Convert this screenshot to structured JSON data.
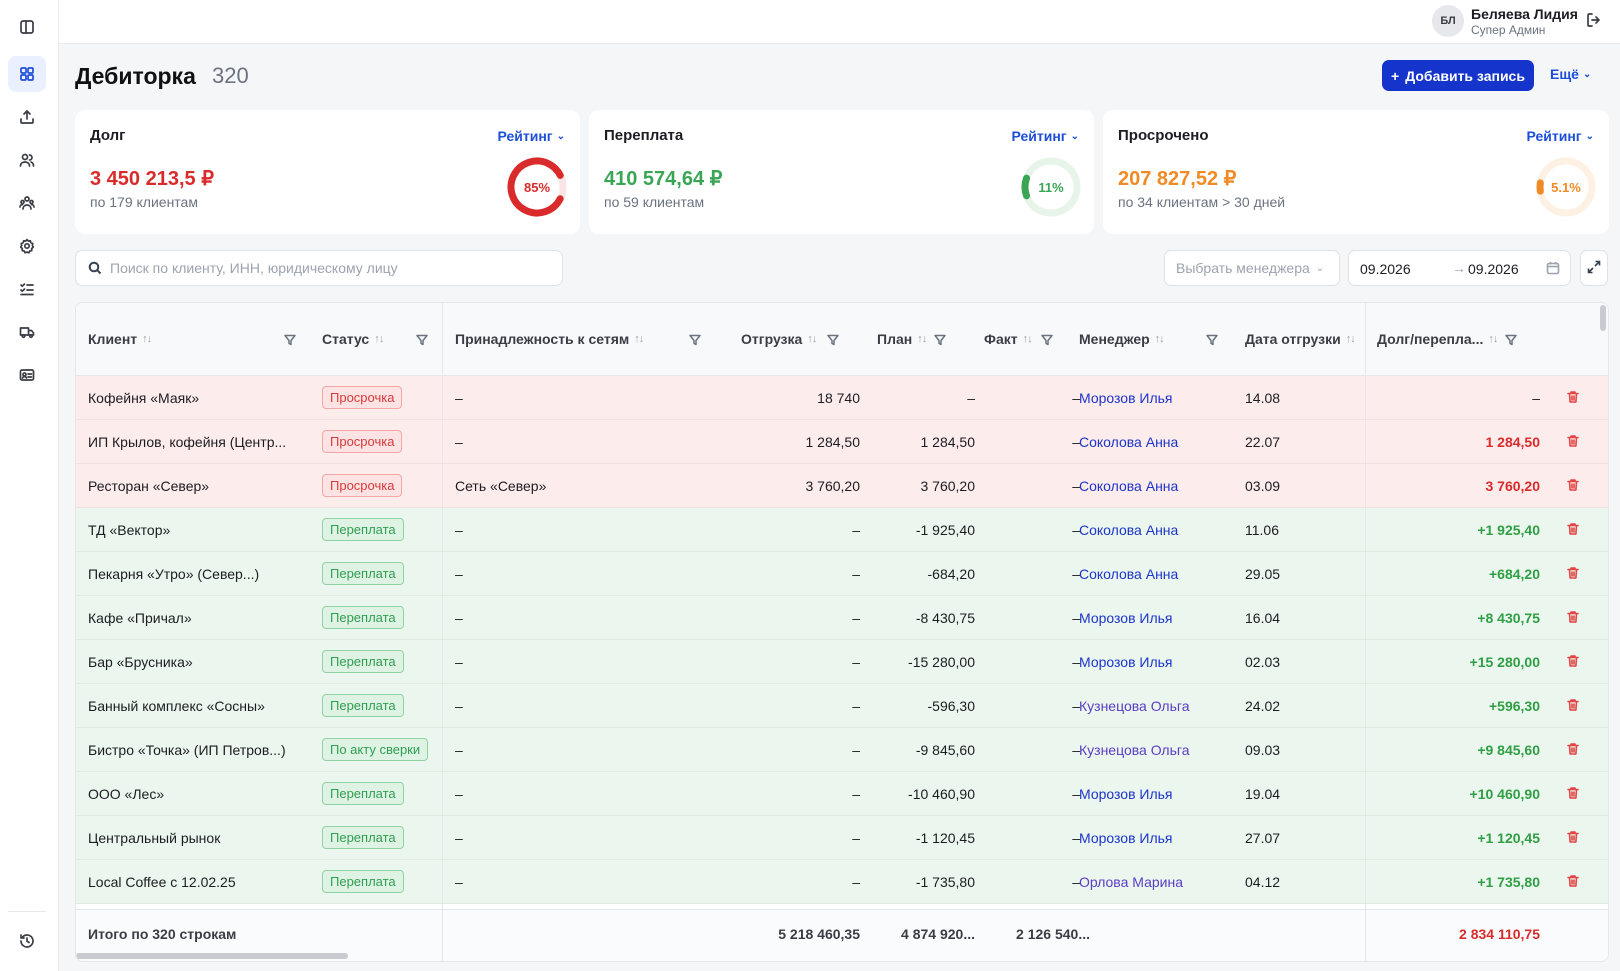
{
  "user": {
    "initials": "БЛ",
    "name": "Беляева Лидия",
    "role": "Супер Админ"
  },
  "page": {
    "title": "Дебиторка",
    "count": "320",
    "add_label": "Добавить запись",
    "more_label": "Ещё"
  },
  "cards": [
    {
      "title": "Долг",
      "rating": "Рейтинг",
      "value": "3 450 213,5 ₽",
      "sub": "по 179 клиентам",
      "percent_label": "85%",
      "percent": 85,
      "color": "#d92b2b"
    },
    {
      "title": "Переплата",
      "rating": "Рейтинг",
      "value": "410 574,64 ₽",
      "sub": "по 59 клиентам",
      "percent_label": "11%",
      "percent": 11,
      "color": "#3aa655"
    },
    {
      "title": "Просрочено",
      "rating": "Рейтинг",
      "value": "207 827,52 ₽",
      "sub": "по 34 клиентам > 30 дней",
      "percent_label": "5.1%",
      "percent": 5.1,
      "color": "#f08a24"
    }
  ],
  "filters": {
    "search_placeholder": "Поиск по клиенту, ИНН, юридическому лицу",
    "manager_placeholder": "Выбрать менеджера",
    "date_from": "09.2026",
    "date_to": "09.2026"
  },
  "columns": {
    "client": "Клиент",
    "status": "Статус",
    "network": "Принадлежность к сетям",
    "shipment": "Отгрузка",
    "plan": "План",
    "fact": "Факт",
    "manager": "Менеджер",
    "ship_date": "Дата отгрузки",
    "debt": "Долг/перепла..."
  },
  "rows": [
    {
      "client": "Кофейня «Маяк»",
      "status": "Просрочка",
      "network": "–",
      "shipment": "18 740",
      "plan": "–",
      "fact": "–",
      "manager": "Морозов Илья",
      "date": "14.08",
      "debt": "–"
    },
    {
      "client": "ИП Крылов, кофейня (Центр...",
      "status": "Просрочка",
      "network": "–",
      "shipment": "1 284,50",
      "plan": "1 284,50",
      "fact": "–",
      "manager": "Соколова Анна",
      "date": "22.07",
      "debt": "1 284,50"
    },
    {
      "client": "Ресторан «Север»",
      "status": "Просрочка",
      "network": "Сеть «Север»",
      "shipment": "3 760,20",
      "plan": "3 760,20",
      "fact": "–",
      "manager": "Соколова Анна",
      "date": "03.09",
      "debt": "3 760,20"
    },
    {
      "client": "ТД «Вектор»",
      "status": "Переплата",
      "network": "–",
      "shipment": "–",
      "plan": "-1 925,40",
      "fact": "–",
      "manager": "Соколова Анна",
      "date": "11.06",
      "debt": "+1 925,40"
    },
    {
      "client": "Пекарня «Утро» (Север...)",
      "status": "Переплата",
      "network": "–",
      "shipment": "–",
      "plan": "-684,20",
      "fact": "–",
      "manager": "Соколова Анна",
      "date": "29.05",
      "debt": "+684,20"
    },
    {
      "client": "Кафе «Причал»",
      "status": "Переплата",
      "network": "–",
      "shipment": "–",
      "plan": "-8 430,75",
      "fact": "–",
      "manager": "Морозов Илья",
      "date": "16.04",
      "debt": "+8 430,75"
    },
    {
      "client": "Бар «Брусника»",
      "status": "Переплата",
      "network": "–",
      "shipment": "–",
      "plan": "-15 280,00",
      "fact": "–",
      "manager": "Морозов Илья",
      "date": "02.03",
      "debt": "+15 280,00"
    },
    {
      "client": "Банный комплекс «Сосны»",
      "status": "Переплата",
      "network": "–",
      "shipment": "–",
      "plan": "-596,30",
      "fact": "–",
      "manager": "Кузнецова Ольга",
      "date": "24.02",
      "debt": "+596,30"
    },
    {
      "client": "Бистро «Точка» (ИП Петров...)",
      "status": "По акту сверки",
      "network": "–",
      "shipment": "–",
      "plan": "-9 845,60",
      "fact": "–",
      "manager": "Кузнецова Ольга",
      "date": "09.03",
      "debt": "+9 845,60"
    },
    {
      "client": "ООО «Лес»",
      "status": "Переплата",
      "network": "–",
      "shipment": "–",
      "plan": "-10 460,90",
      "fact": "–",
      "manager": "Морозов Илья",
      "date": "19.04",
      "debt": "+10 460,90"
    },
    {
      "client": "Центральный рынок",
      "status": "Переплата",
      "network": "–",
      "shipment": "–",
      "plan": "-1 120,45",
      "fact": "–",
      "manager": "Морозов Илья",
      "date": "27.07",
      "debt": "+1 120,45"
    },
    {
      "client": "Local Coffee с 12.02.25",
      "status": "Переплата",
      "network": "–",
      "shipment": "–",
      "plan": "-1 735,80",
      "fact": "–",
      "manager": "Орлова Марина",
      "date": "04.12",
      "debt": "+1 735,80"
    }
  ],
  "footer": {
    "label": "Итого по 320 строкам",
    "shipment": "5 218 460,35",
    "plan": "4 874 920...",
    "fact": "2 126 540...",
    "debt": "2 834 110,75"
  },
  "sidebar_icons": [
    "panel-toggle-icon",
    "dashboard-icon",
    "upload-icon",
    "users-icon",
    "team-icon",
    "settings-icon",
    "checklist-icon",
    "truck-icon",
    "id-card-icon",
    "history-icon"
  ]
}
